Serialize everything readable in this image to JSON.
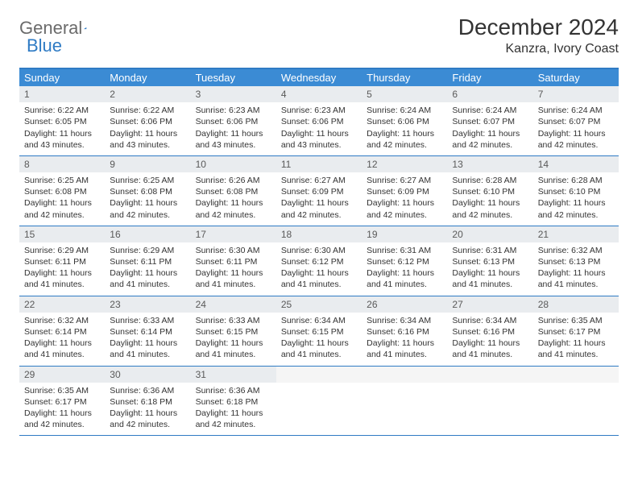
{
  "logo": {
    "text1": "General",
    "text2": "Blue",
    "accent": "#2f7bc4",
    "gray": "#6b6b6b"
  },
  "title": "December 2024",
  "location": "Kanzra, Ivory Coast",
  "colors": {
    "header_bg": "#3b8bd4",
    "border": "#2f7bc4",
    "daynum_bg": "#e9ecef",
    "text": "#333333",
    "bg": "#ffffff"
  },
  "weekdays": [
    "Sunday",
    "Monday",
    "Tuesday",
    "Wednesday",
    "Thursday",
    "Friday",
    "Saturday"
  ],
  "weeks": [
    [
      {
        "n": "1",
        "sr": "6:22 AM",
        "ss": "6:05 PM",
        "dl": "11 hours and 43 minutes."
      },
      {
        "n": "2",
        "sr": "6:22 AM",
        "ss": "6:06 PM",
        "dl": "11 hours and 43 minutes."
      },
      {
        "n": "3",
        "sr": "6:23 AM",
        "ss": "6:06 PM",
        "dl": "11 hours and 43 minutes."
      },
      {
        "n": "4",
        "sr": "6:23 AM",
        "ss": "6:06 PM",
        "dl": "11 hours and 43 minutes."
      },
      {
        "n": "5",
        "sr": "6:24 AM",
        "ss": "6:06 PM",
        "dl": "11 hours and 42 minutes."
      },
      {
        "n": "6",
        "sr": "6:24 AM",
        "ss": "6:07 PM",
        "dl": "11 hours and 42 minutes."
      },
      {
        "n": "7",
        "sr": "6:24 AM",
        "ss": "6:07 PM",
        "dl": "11 hours and 42 minutes."
      }
    ],
    [
      {
        "n": "8",
        "sr": "6:25 AM",
        "ss": "6:08 PM",
        "dl": "11 hours and 42 minutes."
      },
      {
        "n": "9",
        "sr": "6:25 AM",
        "ss": "6:08 PM",
        "dl": "11 hours and 42 minutes."
      },
      {
        "n": "10",
        "sr": "6:26 AM",
        "ss": "6:08 PM",
        "dl": "11 hours and 42 minutes."
      },
      {
        "n": "11",
        "sr": "6:27 AM",
        "ss": "6:09 PM",
        "dl": "11 hours and 42 minutes."
      },
      {
        "n": "12",
        "sr": "6:27 AM",
        "ss": "6:09 PM",
        "dl": "11 hours and 42 minutes."
      },
      {
        "n": "13",
        "sr": "6:28 AM",
        "ss": "6:10 PM",
        "dl": "11 hours and 42 minutes."
      },
      {
        "n": "14",
        "sr": "6:28 AM",
        "ss": "6:10 PM",
        "dl": "11 hours and 42 minutes."
      }
    ],
    [
      {
        "n": "15",
        "sr": "6:29 AM",
        "ss": "6:11 PM",
        "dl": "11 hours and 41 minutes."
      },
      {
        "n": "16",
        "sr": "6:29 AM",
        "ss": "6:11 PM",
        "dl": "11 hours and 41 minutes."
      },
      {
        "n": "17",
        "sr": "6:30 AM",
        "ss": "6:11 PM",
        "dl": "11 hours and 41 minutes."
      },
      {
        "n": "18",
        "sr": "6:30 AM",
        "ss": "6:12 PM",
        "dl": "11 hours and 41 minutes."
      },
      {
        "n": "19",
        "sr": "6:31 AM",
        "ss": "6:12 PM",
        "dl": "11 hours and 41 minutes."
      },
      {
        "n": "20",
        "sr": "6:31 AM",
        "ss": "6:13 PM",
        "dl": "11 hours and 41 minutes."
      },
      {
        "n": "21",
        "sr": "6:32 AM",
        "ss": "6:13 PM",
        "dl": "11 hours and 41 minutes."
      }
    ],
    [
      {
        "n": "22",
        "sr": "6:32 AM",
        "ss": "6:14 PM",
        "dl": "11 hours and 41 minutes."
      },
      {
        "n": "23",
        "sr": "6:33 AM",
        "ss": "6:14 PM",
        "dl": "11 hours and 41 minutes."
      },
      {
        "n": "24",
        "sr": "6:33 AM",
        "ss": "6:15 PM",
        "dl": "11 hours and 41 minutes."
      },
      {
        "n": "25",
        "sr": "6:34 AM",
        "ss": "6:15 PM",
        "dl": "11 hours and 41 minutes."
      },
      {
        "n": "26",
        "sr": "6:34 AM",
        "ss": "6:16 PM",
        "dl": "11 hours and 41 minutes."
      },
      {
        "n": "27",
        "sr": "6:34 AM",
        "ss": "6:16 PM",
        "dl": "11 hours and 41 minutes."
      },
      {
        "n": "28",
        "sr": "6:35 AM",
        "ss": "6:17 PM",
        "dl": "11 hours and 41 minutes."
      }
    ],
    [
      {
        "n": "29",
        "sr": "6:35 AM",
        "ss": "6:17 PM",
        "dl": "11 hours and 42 minutes."
      },
      {
        "n": "30",
        "sr": "6:36 AM",
        "ss": "6:18 PM",
        "dl": "11 hours and 42 minutes."
      },
      {
        "n": "31",
        "sr": "6:36 AM",
        "ss": "6:18 PM",
        "dl": "11 hours and 42 minutes."
      },
      {
        "n": "",
        "sr": "",
        "ss": "",
        "dl": ""
      },
      {
        "n": "",
        "sr": "",
        "ss": "",
        "dl": ""
      },
      {
        "n": "",
        "sr": "",
        "ss": "",
        "dl": ""
      },
      {
        "n": "",
        "sr": "",
        "ss": "",
        "dl": ""
      }
    ]
  ],
  "labels": {
    "sunrise": "Sunrise:",
    "sunset": "Sunset:",
    "daylight": "Daylight:"
  }
}
